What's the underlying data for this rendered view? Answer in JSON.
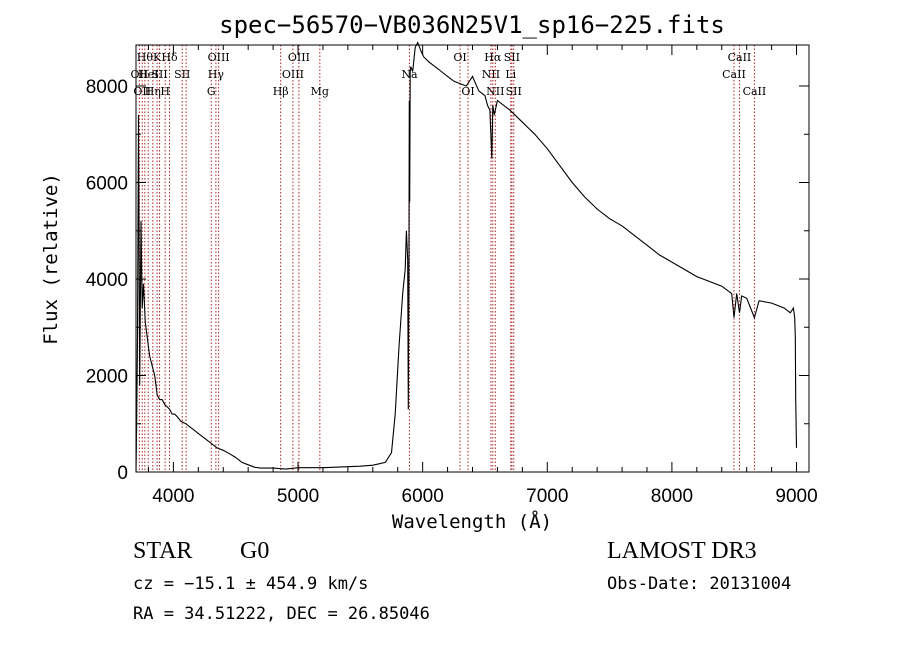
{
  "chart_data": {
    "type": "line",
    "title": "spec−56570−VB036N25V1_sp16−225.fits",
    "xlabel": "Wavelength (Å)",
    "ylabel": "Flux (relative)",
    "xlim": [
      3700,
      9100
    ],
    "ylim": [
      0,
      8850
    ],
    "xticks": [
      4000,
      5000,
      6000,
      7000,
      8000,
      9000
    ],
    "yticks": [
      0,
      2000,
      4000,
      6000,
      8000
    ],
    "grid": false,
    "series": [
      {
        "name": "spectrum",
        "x": [
          3700,
          3705,
          3712,
          3720,
          3730,
          3740,
          3750,
          3760,
          3775,
          3790,
          3810,
          3830,
          3850,
          3870,
          3890,
          3910,
          3930,
          3950,
          3970,
          3990,
          4010,
          4030,
          4060,
          4100,
          4150,
          4200,
          4250,
          4300,
          4350,
          4400,
          4450,
          4500,
          4550,
          4600,
          4650,
          4700,
          4800,
          4900,
          5000,
          5100,
          5200,
          5300,
          5400,
          5500,
          5600,
          5700,
          5750,
          5780,
          5810,
          5840,
          5860,
          5870,
          5880,
          5885,
          5890,
          5893,
          5896,
          5900,
          5905,
          5920,
          5940,
          5960,
          5990,
          6010,
          6050,
          6100,
          6150,
          6200,
          6250,
          6300,
          6350,
          6400,
          6450,
          6500,
          6520,
          6540,
          6555,
          6563,
          6575,
          6600,
          6700,
          6800,
          6900,
          7000,
          7100,
          7200,
          7300,
          7400,
          7500,
          7600,
          7700,
          7800,
          7900,
          8000,
          8100,
          8200,
          8300,
          8400,
          8480,
          8498,
          8520,
          8542,
          8560,
          8600,
          8662,
          8700,
          8800,
          8900,
          8950,
          8975,
          8985,
          8990,
          8993,
          9000
        ],
        "y": [
          0,
          900,
          2800,
          7400,
          1800,
          5200,
          3400,
          3900,
          3100,
          2800,
          2400,
          2200,
          2000,
          1600,
          1500,
          1500,
          1400,
          1350,
          1300,
          1200,
          1200,
          1150,
          1050,
          1000,
          900,
          800,
          700,
          600,
          500,
          450,
          380,
          300,
          200,
          150,
          100,
          80,
          80,
          60,
          90,
          90,
          90,
          100,
          110,
          120,
          140,
          200,
          400,
          1200,
          2600,
          3700,
          4200,
          5000,
          4400,
          1300,
          4000,
          7700,
          5600,
          8300,
          8400,
          8300,
          8800,
          8900,
          8700,
          8600,
          8500,
          8400,
          8300,
          8200,
          8100,
          8050,
          8000,
          8200,
          7900,
          7800,
          7600,
          7500,
          6500,
          7600,
          7400,
          7700,
          7500,
          7250,
          7000,
          6700,
          6350,
          6000,
          5700,
          5450,
          5250,
          5100,
          4900,
          4700,
          4500,
          4350,
          4200,
          4050,
          3950,
          3850,
          3700,
          3200,
          3700,
          3300,
          3650,
          3600,
          3200,
          3550,
          3500,
          3400,
          3300,
          3400,
          3200,
          2800,
          1500,
          500
        ]
      }
    ],
    "line_groups": [
      {
        "color": "#b22222",
        "lines": [
          {
            "w": 3727,
            "label": "OII",
            "row": 2
          },
          {
            "w": 3750,
            "label": "OII",
            "row": 3
          },
          {
            "w": 3771,
            "label": "Hθ",
            "row": 1
          },
          {
            "w": 3798,
            "label": "HeI",
            "row": 2
          },
          {
            "w": 3835,
            "label": "Hη",
            "row": 3
          },
          {
            "w": 3869,
            "label": "K",
            "row": 1
          },
          {
            "w": 3889,
            "label": "SII",
            "row": 2
          },
          {
            "w": 3934,
            "label": "H",
            "row": 3
          },
          {
            "w": 3969,
            "label": "Hδ",
            "row": 1
          },
          {
            "w": 4071,
            "label": "SII",
            "row": 2
          },
          {
            "w": 4102,
            "label": "",
            "row": 0
          },
          {
            "w": 4304,
            "label": "G",
            "row": 3
          },
          {
            "w": 4341,
            "label": "Hγ",
            "row": 2
          },
          {
            "w": 4363,
            "label": "OIII",
            "row": 1
          },
          {
            "w": 4861,
            "label": "Hβ",
            "row": 3
          },
          {
            "w": 4959,
            "label": "OIII",
            "row": 2
          },
          {
            "w": 5007,
            "label": "OIII",
            "row": 1
          },
          {
            "w": 5175,
            "label": "Mg",
            "row": 3
          },
          {
            "w": 5894,
            "label": "Na",
            "row": 2
          },
          {
            "w": 6300,
            "label": "OI",
            "row": 1
          },
          {
            "w": 6364,
            "label": "OI",
            "row": 3
          },
          {
            "w": 6548,
            "label": "NII",
            "row": 2
          },
          {
            "w": 6563,
            "label": "Hα",
            "row": 1
          },
          {
            "w": 6583,
            "label": "NII",
            "row": 3
          },
          {
            "w": 6707,
            "label": "Li",
            "row": 2
          },
          {
            "w": 6716,
            "label": "SII",
            "row": 1
          },
          {
            "w": 6731,
            "label": "SII",
            "row": 3
          },
          {
            "w": 8498,
            "label": "CaII",
            "row": 2
          },
          {
            "w": 8542,
            "label": "CaII",
            "row": 1
          },
          {
            "w": 8662,
            "label": "CaII",
            "row": 3
          }
        ]
      }
    ]
  },
  "footer": {
    "object_class": "STAR",
    "subclass": "G0",
    "survey": "LAMOST DR3",
    "cz": "cz = −15.1 ± 454.9 km/s",
    "obs_date": "Obs-Date: 20131004",
    "radec": "RA =  34.51222, DEC =  26.85046"
  }
}
